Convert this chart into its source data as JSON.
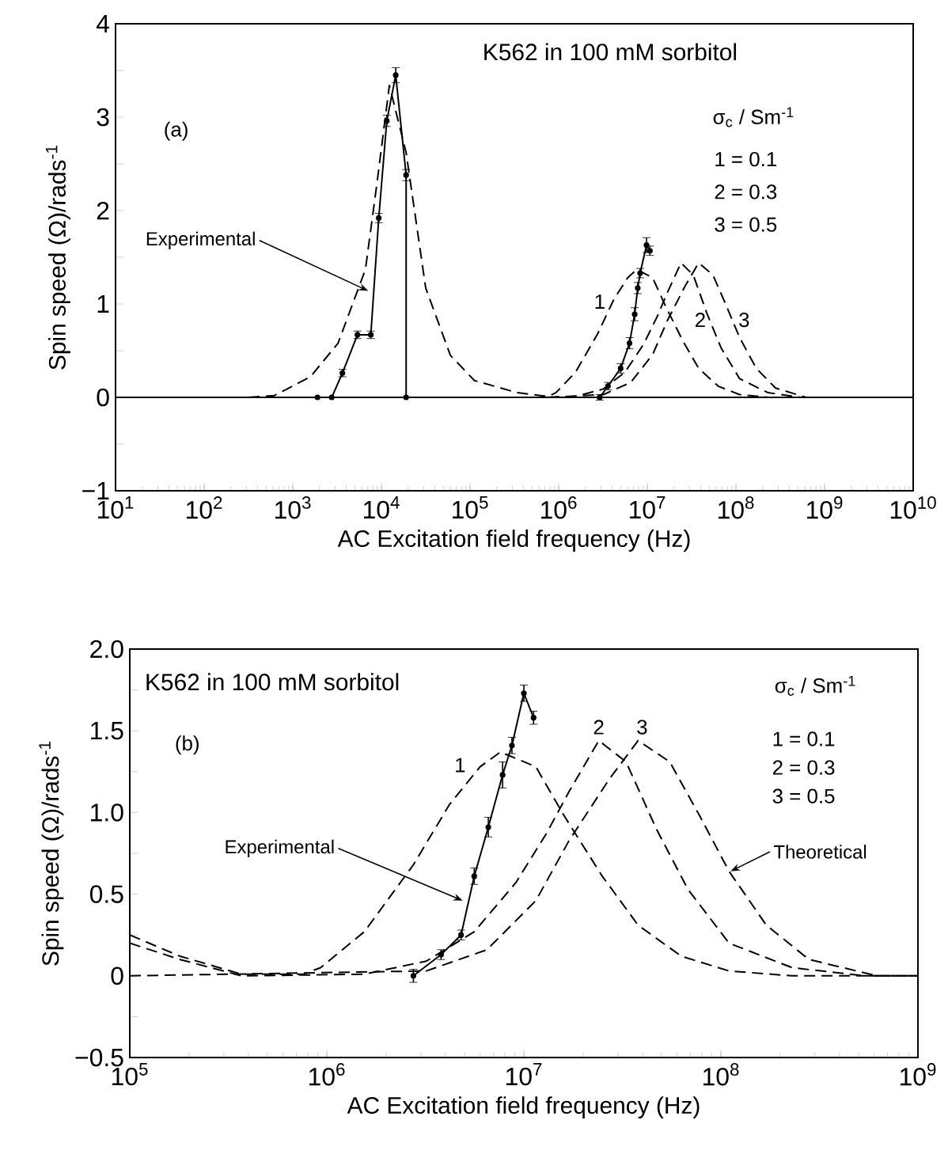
{
  "chart_data": [
    {
      "type": "line",
      "title": "K562 in 100 mM sorbitol",
      "xlabel": "AC Excitation field frequency (Hz)",
      "ylabel": "Spin speed (Ω)/rads$^{-1}$",
      "log": "x",
      "xlim": [
        10,
        10000000000
      ],
      "xticks": [
        {
          "value": 10,
          "label": "10$^{1}$"
        },
        {
          "value": 100,
          "label": "10$^{2}$"
        },
        {
          "value": 1000,
          "label": "10$^{3}$"
        },
        {
          "value": 10000,
          "label": "10$^{4}$"
        },
        {
          "value": 100000,
          "label": "10$^{5}$"
        },
        {
          "value": 1000000,
          "label": "10$^{6}$"
        },
        {
          "value": 10000000,
          "label": "10$^{7}$"
        },
        {
          "value": 100000000,
          "label": "10$^{8}$"
        },
        {
          "value": 1000000000,
          "label": "10$^{9}$"
        },
        {
          "value": 10000000000,
          "label": "10$^{10}$"
        }
      ],
      "ylim": [
        -1,
        4
      ],
      "yticks": [
        {
          "value": -1,
          "label": "−1"
        },
        {
          "value": -0.5,
          "label": null
        },
        0,
        {
          "value": 0.5,
          "label": null
        },
        1,
        {
          "value": 1.5,
          "label": null
        },
        2,
        {
          "value": 2.5,
          "label": null
        },
        3,
        {
          "value": 3.5,
          "label": null
        },
        4
      ],
      "ref_lines": [
        {
          "axis": "y",
          "value": 0,
          "line_style": "solid"
        }
      ],
      "series": [
        {
          "color": "#000000",
          "marker": "circle",
          "line_style": "solid",
          "x": [
            1900,
            2750,
            3630,
            5370,
            7590,
            9330,
            11500,
            14500,
            19000,
            19000,
            2900000,
            3600000,
            5000000,
            6300000,
            7200000,
            7800000,
            8300000,
            9800000,
            10700000
          ],
          "values": [
            0,
            0,
            0.26,
            0.67,
            0.67,
            1.92,
            2.96,
            3.45,
            2.38,
            0,
            0,
            0.12,
            0.31,
            0.58,
            0.89,
            1.17,
            1.33,
            1.63,
            1.57
          ],
          "errors": [
            null,
            null,
            0.04,
            0.04,
            0.04,
            0.05,
            0.06,
            0.08,
            0.06,
            null,
            0.03,
            0.04,
            0.05,
            0.06,
            0.07,
            0.06,
            0.05,
            0.08,
            0.05
          ]
        },
        {
          "color": "#000000",
          "marker": "none",
          "line_style": "dashed",
          "x": [
            316,
            620,
            1580,
            3240,
            6600,
            8900,
            12300,
            19000,
            31600,
            60000,
            112000,
            340000,
            760000,
            930000,
            1550000,
            2750000,
            4200000,
            6000000,
            7600000,
            11500000,
            16000000,
            25000000,
            38000000,
            63000000,
            110000000,
            230000000,
            10000000000
          ],
          "values": [
            0,
            0.02,
            0.22,
            0.58,
            1.37,
            2.29,
            3.34,
            2.62,
            1.17,
            0.45,
            0.18,
            0.05,
            0.01,
            0.05,
            0.27,
            0.68,
            1.05,
            1.28,
            1.37,
            1.28,
            0.98,
            0.61,
            0.31,
            0.12,
            0.03,
            0,
            0
          ]
        },
        {
          "color": "#000000",
          "marker": "none",
          "line_style": "dashed",
          "x": [
            760000,
            1550000,
            3200000,
            5600000,
            9100000,
            13000000,
            17000000,
            24000000,
            33000000,
            47000000,
            68000000,
            110000000,
            230000000,
            540000000,
            10000000000
          ],
          "values": [
            0,
            0.01,
            0.09,
            0.27,
            0.57,
            0.87,
            1.13,
            1.44,
            1.31,
            0.9,
            0.53,
            0.2,
            0.05,
            0,
            0
          ]
        },
        {
          "color": "#000000",
          "marker": "none",
          "line_style": "dashed",
          "x": [
            760000,
            3200000,
            6500000,
            11500000,
            17000000,
            27000000,
            38000000,
            55000000,
            78000000,
            110000000,
            170000000,
            280000000,
            620000000,
            10000000000
          ],
          "values": [
            0,
            0.03,
            0.16,
            0.46,
            0.83,
            1.2,
            1.44,
            1.31,
            0.98,
            0.64,
            0.31,
            0.1,
            0,
            0
          ]
        }
      ],
      "annotations": [
        "(a)",
        "σ$_{c}$ / Sm$^{-1}$",
        "1 = 0.1",
        "2 = 0.3",
        "3 = 0.5",
        {
          "text": "Experimental",
          "x": 7100,
          "y": 1.14
        },
        "1",
        "2",
        "3"
      ]
    },
    {
      "type": "line",
      "title": "K562 in 100 mM sorbitol",
      "xlabel": "AC Excitation field frequency (Hz)",
      "ylabel": "Spin speed (Ω)/rads$^{-1}$",
      "log": "x",
      "xlim": [
        100000,
        1000000000
      ],
      "xticks": [
        {
          "value": 100000,
          "label": "10$^{5}$"
        },
        {
          "value": 1000000,
          "label": "10$^{6}$"
        },
        {
          "value": 10000000,
          "label": "10$^{7}$"
        },
        {
          "value": 100000000,
          "label": "10$^{8}$"
        },
        {
          "value": 1000000000,
          "label": "10$^{9}$"
        }
      ],
      "ylim": [
        -0.5,
        2
      ],
      "yticks": [
        {
          "value": -0.5,
          "label": "−0.5"
        },
        {
          "value": -0.25,
          "label": null
        },
        0,
        {
          "value": 0.25,
          "label": null
        },
        0.5,
        {
          "value": 0.75,
          "label": null
        },
        {
          "value": 1,
          "label": "1.0"
        },
        {
          "value": 1.25,
          "label": null
        },
        1.5,
        {
          "value": 1.75,
          "label": null
        },
        {
          "value": 2,
          "label": "2.0"
        }
      ],
      "series": [
        {
          "color": "#000000",
          "marker": "circle",
          "line_style": "solid",
          "x": [
            2750000,
            3800000,
            4800000,
            5600000,
            6600000,
            7800000,
            8700000,
            10000000,
            11200000
          ],
          "values": [
            0,
            0.13,
            0.25,
            0.61,
            0.91,
            1.23,
            1.41,
            1.73,
            1.58
          ],
          "errors": [
            0.04,
            0.03,
            0.03,
            0.05,
            0.06,
            0.08,
            0.05,
            0.05,
            0.04
          ]
        },
        {
          "color": "#000000",
          "marker": "none",
          "line_style": "dashed",
          "x": [
            100000,
            180000,
            370000,
            760000,
            930000,
            1550000,
            2750000,
            4200000,
            6000000,
            7600000,
            11500000,
            16000000,
            25000000,
            38000000,
            63000000,
            110000000,
            230000000,
            1000000000
          ],
          "values": [
            0.25,
            0.12,
            0.01,
            0.01,
            0.05,
            0.27,
            0.68,
            1.05,
            1.28,
            1.37,
            1.28,
            0.98,
            0.61,
            0.31,
            0.12,
            0.03,
            0,
            0
          ]
        },
        {
          "color": "#000000",
          "marker": "none",
          "line_style": "dashed",
          "x": [
            100000,
            180000,
            370000,
            1550000,
            3200000,
            5600000,
            9100000,
            13000000,
            17000000,
            24000000,
            33000000,
            47000000,
            68000000,
            110000000,
            230000000,
            540000000,
            1000000000
          ],
          "values": [
            0.2,
            0.1,
            0,
            0.01,
            0.09,
            0.27,
            0.57,
            0.87,
            1.13,
            1.44,
            1.31,
            0.9,
            0.53,
            0.2,
            0.05,
            0,
            0
          ]
        },
        {
          "color": "#000000",
          "marker": "none",
          "line_style": "dashed",
          "x": [
            100000,
            3200000,
            6500000,
            11500000,
            17000000,
            27000000,
            38000000,
            55000000,
            78000000,
            110000000,
            170000000,
            280000000,
            620000000,
            1000000000
          ],
          "values": [
            0,
            0.03,
            0.16,
            0.46,
            0.83,
            1.2,
            1.44,
            1.31,
            0.98,
            0.64,
            0.31,
            0.1,
            0,
            0
          ]
        }
      ],
      "annotations": [
        "(b)",
        "σ$_{c}$ / Sm$^{-1}$",
        "1 = 0.1",
        "2 = 0.3",
        "3 = 0.5",
        {
          "text": "Experimental",
          "x": 4900000,
          "y": 0.46
        },
        {
          "text": "Theoretical",
          "x": 112000000,
          "y": 0.64
        },
        "1",
        "2",
        "3"
      ]
    }
  ]
}
